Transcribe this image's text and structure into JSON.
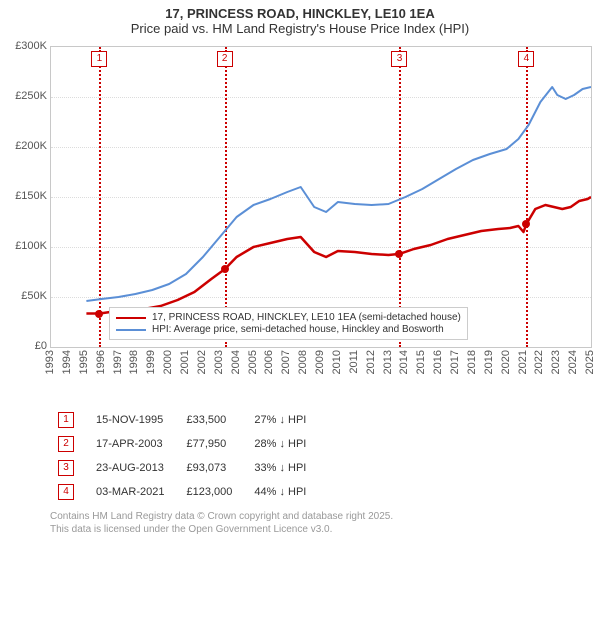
{
  "title": {
    "line1": "17, PRINCESS ROAD, HINCKLEY, LE10 1EA",
    "line2": "Price paid vs. HM Land Registry's House Price Index (HPI)",
    "fontsize": 13,
    "line1_weight": "bold"
  },
  "chart": {
    "type": "line",
    "background_color": "#ffffff",
    "border_color": "#c8c8c8",
    "grid_color": "#dcdcdc",
    "text_color": "#555555",
    "x": {
      "min": 1993,
      "max": 2025,
      "tick_step": 1,
      "label_fontsize": 11
    },
    "y": {
      "min": 0,
      "max": 300000,
      "tick_step": 50000,
      "tick_labels": [
        "£0",
        "£50K",
        "£100K",
        "£150K",
        "£200K",
        "£250K",
        "£300K"
      ],
      "label_fontsize": 11
    },
    "sale_dotted_line_color": "#cc0000",
    "sale_dotted_line_width": 2,
    "sale_marker_box": {
      "border_color": "#cc0000",
      "bg": "#ffffff",
      "size": 14
    },
    "sale_dot": {
      "color": "#cc0000",
      "radius": 4
    },
    "series": [
      {
        "name": "price_paid",
        "label": "17, PRINCESS ROAD, HINCKLEY, LE10 1EA (semi-detached house)",
        "color": "#cc0000",
        "line_width": 2.5,
        "points": [
          [
            1995.1,
            33500
          ],
          [
            1995.9,
            33500
          ],
          [
            1996.5,
            35000
          ],
          [
            1997.5,
            36000
          ],
          [
            1998.5,
            38000
          ],
          [
            1999.5,
            41000
          ],
          [
            2000.5,
            47000
          ],
          [
            2001.5,
            55000
          ],
          [
            2002.5,
            68000
          ],
          [
            2003.3,
            77950
          ],
          [
            2004.0,
            90000
          ],
          [
            2005.0,
            100000
          ],
          [
            2006.0,
            104000
          ],
          [
            2007.0,
            108000
          ],
          [
            2007.8,
            110000
          ],
          [
            2008.6,
            95000
          ],
          [
            2009.3,
            90000
          ],
          [
            2010.0,
            96000
          ],
          [
            2011.0,
            95000
          ],
          [
            2012.0,
            93000
          ],
          [
            2013.0,
            92000
          ],
          [
            2013.65,
            93073
          ],
          [
            2014.5,
            98000
          ],
          [
            2015.5,
            102000
          ],
          [
            2016.5,
            108000
          ],
          [
            2017.5,
            112000
          ],
          [
            2018.5,
            116000
          ],
          [
            2019.5,
            118000
          ],
          [
            2020.2,
            119000
          ],
          [
            2020.7,
            121000
          ],
          [
            2021.0,
            115000
          ],
          [
            2021.17,
            123000
          ],
          [
            2021.7,
            138000
          ],
          [
            2022.3,
            142000
          ],
          [
            2022.8,
            140000
          ],
          [
            2023.3,
            138000
          ],
          [
            2023.8,
            140000
          ],
          [
            2024.3,
            146000
          ],
          [
            2024.8,
            148000
          ],
          [
            2025.0,
            150000
          ]
        ]
      },
      {
        "name": "hpi",
        "label": "HPI: Average price, semi-detached house, Hinckley and Bosworth",
        "color": "#5b8fd6",
        "line_width": 2,
        "points": [
          [
            1995.1,
            46000
          ],
          [
            1996.0,
            48000
          ],
          [
            1997.0,
            50000
          ],
          [
            1998.0,
            53000
          ],
          [
            1999.0,
            57000
          ],
          [
            2000.0,
            63000
          ],
          [
            2001.0,
            73000
          ],
          [
            2002.0,
            90000
          ],
          [
            2003.0,
            110000
          ],
          [
            2004.0,
            130000
          ],
          [
            2005.0,
            142000
          ],
          [
            2006.0,
            148000
          ],
          [
            2007.0,
            155000
          ],
          [
            2007.8,
            160000
          ],
          [
            2008.6,
            140000
          ],
          [
            2009.3,
            135000
          ],
          [
            2010.0,
            145000
          ],
          [
            2011.0,
            143000
          ],
          [
            2012.0,
            142000
          ],
          [
            2013.0,
            143000
          ],
          [
            2014.0,
            150000
          ],
          [
            2015.0,
            158000
          ],
          [
            2016.0,
            168000
          ],
          [
            2017.0,
            178000
          ],
          [
            2018.0,
            187000
          ],
          [
            2019.0,
            193000
          ],
          [
            2020.0,
            198000
          ],
          [
            2020.7,
            208000
          ],
          [
            2021.3,
            222000
          ],
          [
            2022.0,
            245000
          ],
          [
            2022.7,
            260000
          ],
          [
            2023.0,
            252000
          ],
          [
            2023.5,
            248000
          ],
          [
            2024.0,
            252000
          ],
          [
            2024.5,
            258000
          ],
          [
            2025.0,
            260000
          ]
        ]
      }
    ],
    "sales": [
      {
        "idx": "1",
        "year_frac": 1995.87,
        "date": "15-NOV-1995",
        "price": 33500,
        "price_str": "£33,500",
        "below_hpi": "27% ↓ HPI"
      },
      {
        "idx": "2",
        "year_frac": 2003.29,
        "date": "17-APR-2003",
        "price": 77950,
        "price_str": "£77,950",
        "below_hpi": "28% ↓ HPI"
      },
      {
        "idx": "3",
        "year_frac": 2013.65,
        "date": "23-AUG-2013",
        "price": 93073,
        "price_str": "£93,073",
        "below_hpi": "33% ↓ HPI"
      },
      {
        "idx": "4",
        "year_frac": 2021.17,
        "date": "03-MAR-2021",
        "price": 123000,
        "price_str": "£123,000",
        "below_hpi": "44% ↓ HPI"
      }
    ]
  },
  "legend": {
    "bg": "#ffffff",
    "border": "#cccccc",
    "fontsize": 10
  },
  "footer": {
    "line1": "Contains HM Land Registry data © Crown copyright and database right 2025.",
    "line2": "This data is licensed under the Open Government Licence v3.0.",
    "color": "#999999",
    "fontsize": 10
  }
}
